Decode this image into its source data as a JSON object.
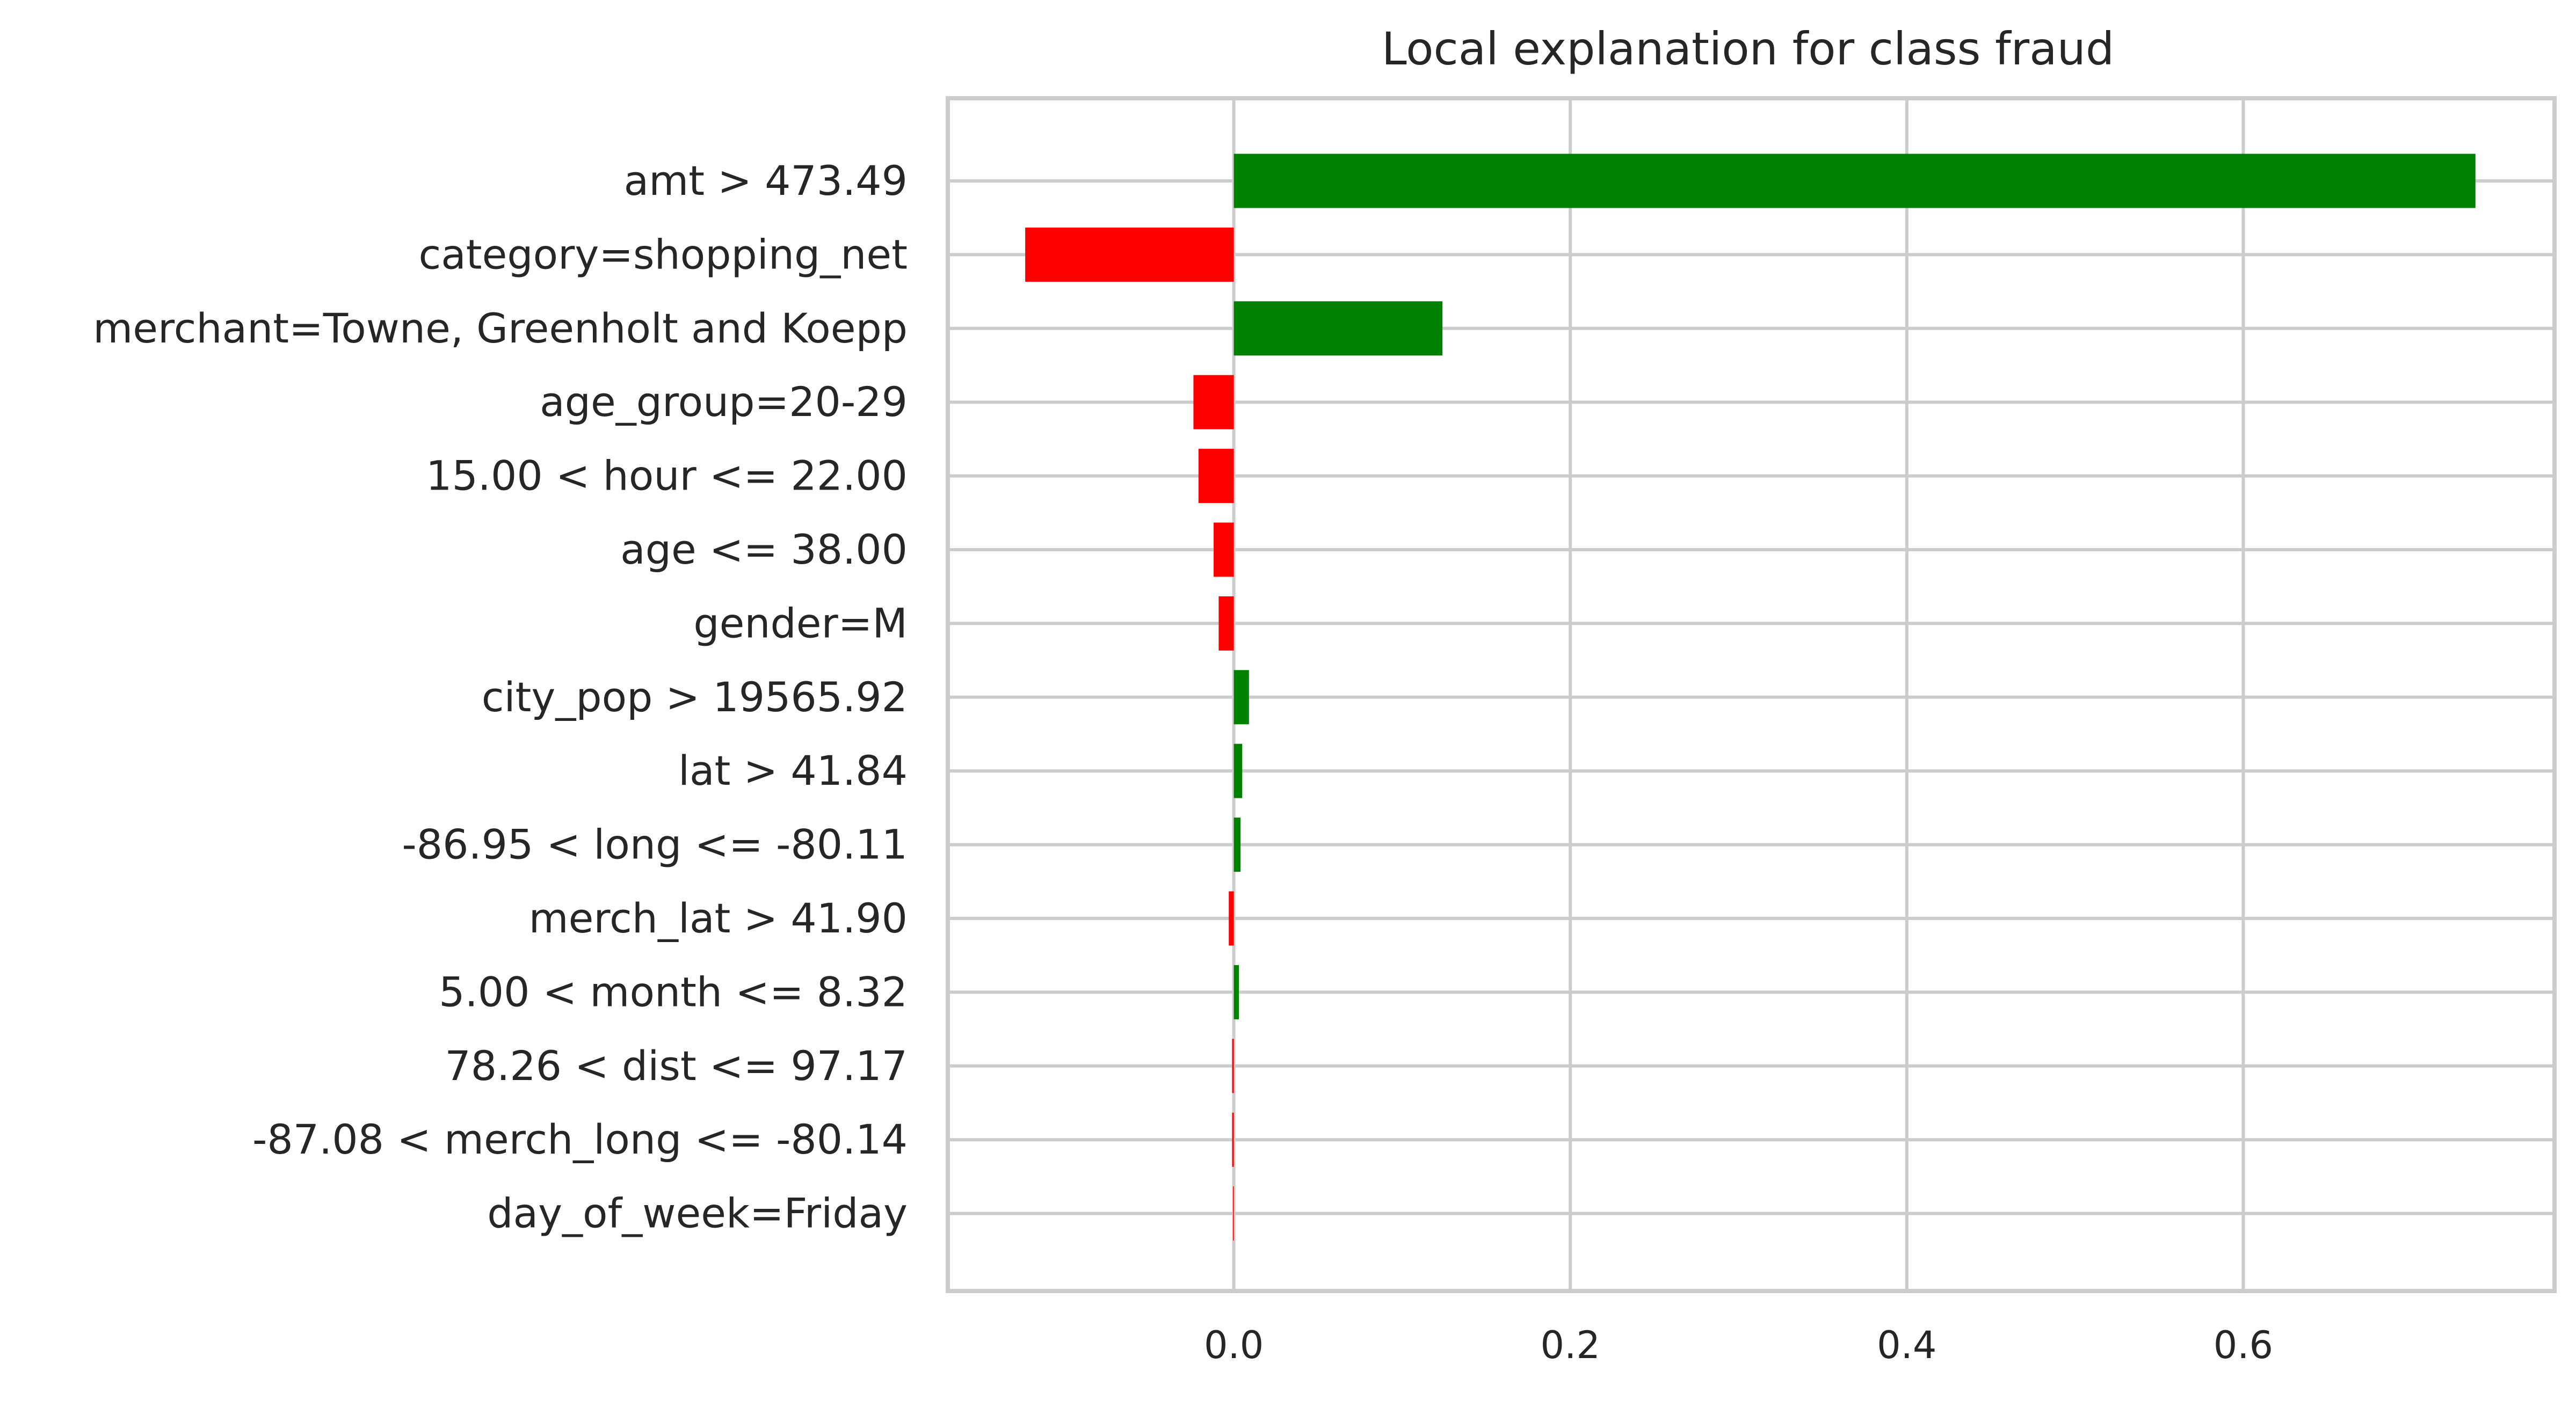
{
  "chart_data": {
    "type": "bar",
    "orientation": "horizontal",
    "title": "Local explanation for class fraud",
    "xlabel": "",
    "ylabel": "",
    "categories": [
      "amt > 473.49",
      "category=shopping_net",
      "merchant=Towne, Greenholt and Koepp",
      "age_group=20-29",
      "15.00 < hour <= 22.00",
      "age <= 38.00",
      "gender=M",
      "city_pop > 19565.92",
      "lat > 41.84",
      "-86.95 < long <= -80.11",
      "merch_lat > 41.90",
      "5.00 < month <= 8.32",
      "78.26 < dist <= 97.17",
      "-87.08 < merch_long <= -80.14",
      "day_of_week=Friday"
    ],
    "values": [
      0.738,
      -0.124,
      0.124,
      -0.024,
      -0.021,
      -0.012,
      -0.009,
      0.009,
      0.005,
      0.004,
      -0.003,
      0.003,
      -0.001,
      -0.001,
      -0.0005
    ],
    "xlim": [
      -0.17,
      0.785
    ],
    "xticks": [
      0.0,
      0.2,
      0.4,
      0.6
    ],
    "xtick_labels": [
      "0.0",
      "0.2",
      "0.4",
      "0.6"
    ],
    "grid": true,
    "colors": {
      "positive": "#008000",
      "negative": "#ff0000",
      "grid": "#cccccc",
      "text": "#262626"
    }
  }
}
